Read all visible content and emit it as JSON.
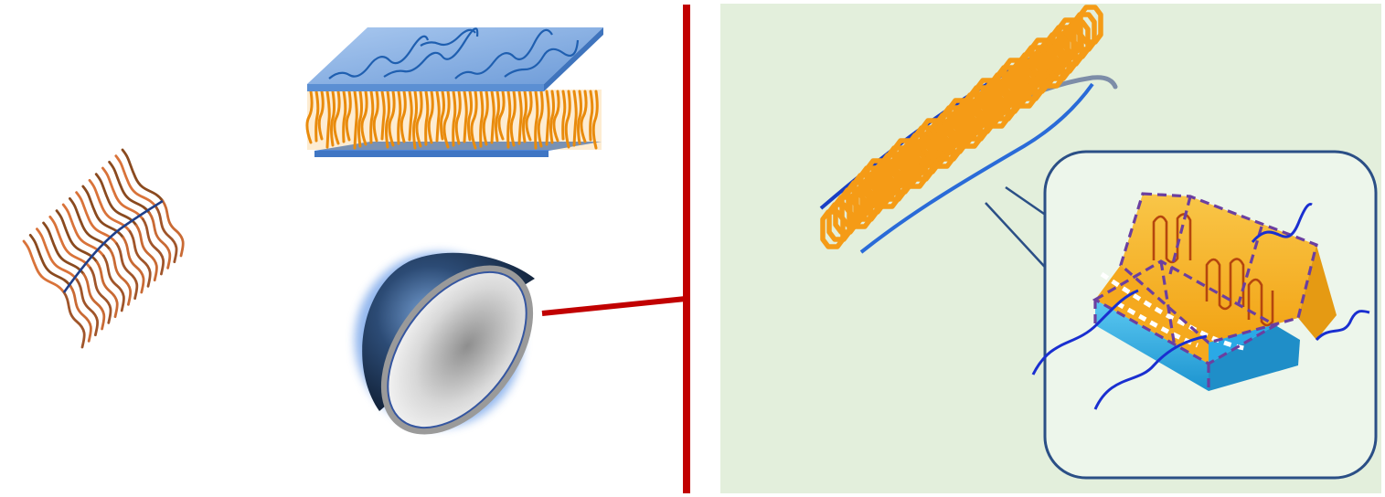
{
  "figure": {
    "left_panel": {
      "items": [
        {
          "name": "bottlebrush-polymer"
        },
        {
          "name": "lamellar-bilayer-sheet"
        },
        {
          "name": "hemispherical-micelle-cap"
        }
      ]
    },
    "right_panel": {
      "items": [
        {
          "name": "folded-chain-crystal-on-backbone"
        },
        {
          "name": "zoom-inset-crystal-block"
        }
      ]
    }
  },
  "colors": {
    "background": "#ffffff",
    "right_panel_bg": "#e3efdc",
    "divider_red": "#c10000",
    "orange_chain": "#f59b16",
    "blue_backbone": "#1a3fc4",
    "inset_border": "#2b4f86",
    "block_orange": "#f7b52c",
    "block_cyan": "#36b6ea",
    "dashed_purple": "#6b3fa0"
  }
}
